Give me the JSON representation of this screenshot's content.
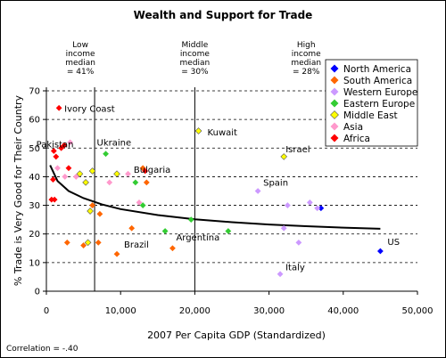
{
  "chart_data": {
    "type": "scatter",
    "title": "Wealth and Support for Trade",
    "xlabel": "2007 Per Capita GDP (Standardized)",
    "ylabel": "% Trade is Very Good for Their Country",
    "xlim": [
      0,
      50000
    ],
    "ylim": [
      0,
      70
    ],
    "xticks": [
      {
        "value": 0,
        "label": "0"
      },
      {
        "value": 10000,
        "label": "10,000"
      },
      {
        "value": 20000,
        "label": "20,000"
      },
      {
        "value": 30000,
        "label": "30,000"
      },
      {
        "value": 40000,
        "label": "40,000"
      },
      {
        "value": 50000,
        "label": "50,000"
      }
    ],
    "yticks": [
      {
        "value": 0,
        "label": "0"
      },
      {
        "value": 10,
        "label": "10"
      },
      {
        "value": 20,
        "label": "20"
      },
      {
        "value": 30,
        "label": "30"
      },
      {
        "value": 40,
        "label": "40"
      },
      {
        "value": 50,
        "label": "50"
      },
      {
        "value": 60,
        "label": "60"
      },
      {
        "value": 70,
        "label": "70"
      }
    ],
    "grid": "horizontal dashed",
    "legend_position": "top-right",
    "correlation": "Correlation = -.40",
    "income_medians": [
      {
        "x": 6500,
        "lines": [
          "Low",
          "income",
          "median",
          "= 41%"
        ]
      },
      {
        "x": 20000,
        "lines": [
          "Middle",
          "income",
          "median",
          "= 30%"
        ]
      },
      {
        "x": 35000,
        "lines": [
          "High",
          "income",
          "median",
          "= 28%"
        ]
      }
    ],
    "median_lines_x": [
      6500,
      20000
    ],
    "series": [
      {
        "name": "North America",
        "color": "#0000FF",
        "points": [
          [
            45000,
            14
          ],
          [
            37000,
            29
          ]
        ]
      },
      {
        "name": "South America",
        "color": "#FF6600",
        "points": [
          [
            2800,
            17
          ],
          [
            5000,
            16
          ],
          [
            6200,
            30
          ],
          [
            7000,
            17
          ],
          [
            7200,
            27
          ],
          [
            9500,
            13
          ],
          [
            11500,
            22
          ],
          [
            13000,
            43
          ],
          [
            13500,
            38
          ],
          [
            17000,
            15
          ]
        ]
      },
      {
        "name": "Western Europe",
        "color": "#CC99FF",
        "points": [
          [
            31500,
            6
          ],
          [
            28500,
            35
          ],
          [
            32000,
            22
          ],
          [
            32500,
            30
          ],
          [
            35500,
            31
          ],
          [
            36500,
            29
          ],
          [
            34000,
            17
          ]
        ]
      },
      {
        "name": "Eastern Europe",
        "color": "#33CC33",
        "points": [
          [
            8000,
            48
          ],
          [
            12000,
            38
          ],
          [
            13000,
            30
          ],
          [
            16000,
            21
          ],
          [
            19500,
            25
          ],
          [
            24500,
            21
          ]
        ]
      },
      {
        "name": "Middle East",
        "color": "#FFFF00",
        "points": [
          [
            4500,
            41
          ],
          [
            5300,
            38
          ],
          [
            5600,
            17
          ],
          [
            5900,
            28
          ],
          [
            6200,
            42
          ],
          [
            9500,
            41
          ],
          [
            20500,
            56
          ],
          [
            32000,
            47
          ]
        ]
      },
      {
        "name": "Asia",
        "color": "#FF99CC",
        "points": [
          [
            1500,
            43
          ],
          [
            2500,
            40
          ],
          [
            3200,
            52
          ],
          [
            4000,
            40
          ],
          [
            8500,
            38
          ],
          [
            11000,
            41
          ],
          [
            12500,
            31
          ]
        ]
      },
      {
        "name": "Africa",
        "color": "#FF0000",
        "points": [
          [
            700,
            32
          ],
          [
            900,
            39
          ],
          [
            1000,
            49
          ],
          [
            1300,
            47
          ],
          [
            1700,
            64
          ],
          [
            2000,
            50
          ],
          [
            2400,
            51
          ],
          [
            3000,
            43
          ],
          [
            1100,
            32
          ],
          [
            13300,
            42
          ]
        ]
      }
    ],
    "trendline": [
      [
        500,
        44
      ],
      [
        1500,
        38.5
      ],
      [
        3000,
        35
      ],
      [
        5000,
        32.5
      ],
      [
        7500,
        30.3
      ],
      [
        10000,
        28.7
      ],
      [
        15000,
        26.6
      ],
      [
        20000,
        25.1
      ],
      [
        25000,
        24.1
      ],
      [
        30000,
        23.3
      ],
      [
        35000,
        22.7
      ],
      [
        40000,
        22.2
      ],
      [
        45000,
        21.8
      ]
    ],
    "labels": [
      {
        "text": "Ivory Coast",
        "x": 1700,
        "y": 64
      },
      {
        "text": "Pakistan",
        "x": 2000,
        "y": 50
      },
      {
        "text": "Ukraine",
        "x": 8000,
        "y": 48
      },
      {
        "text": "Bulgaria",
        "x": 12000,
        "y": 38
      },
      {
        "text": "Kuwait",
        "x": 20500,
        "y": 56
      },
      {
        "text": "Israel",
        "x": 32000,
        "y": 47
      },
      {
        "text": "Spain",
        "x": 28500,
        "y": 35
      },
      {
        "text": "Brazil",
        "x": 9500,
        "y": 13
      },
      {
        "text": "Argentina",
        "x": 17000,
        "y": 15
      },
      {
        "text": "US",
        "x": 45000,
        "y": 14
      },
      {
        "text": "Italy",
        "x": 31500,
        "y": 6
      }
    ]
  }
}
